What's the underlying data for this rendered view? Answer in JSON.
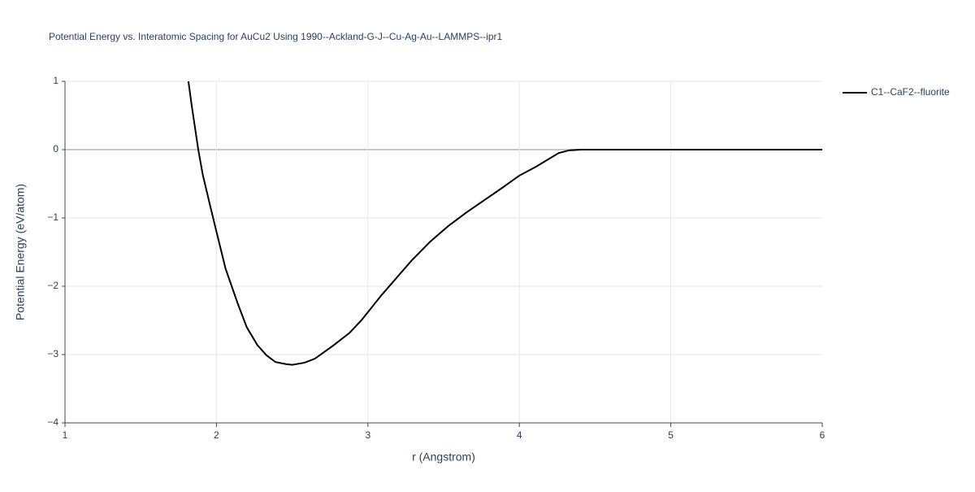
{
  "chart_data": {
    "type": "line",
    "title": "Potential Energy vs. Interatomic Spacing for AuCu2 Using 1990--Ackland-G-J--Cu-Ag-Au--LAMMPS--ipr1",
    "x_label": "r (Angstrom)",
    "y_label": "Potential Energy (eV/atom)",
    "x": [
      1.815,
      1.837,
      1.88,
      1.91,
      1.955,
      2.0,
      2.06,
      2.14,
      2.2,
      2.27,
      2.33,
      2.39,
      2.46,
      2.5,
      2.58,
      2.65,
      2.77,
      2.88,
      2.96,
      3.09,
      3.29,
      3.41,
      3.53,
      3.65,
      3.88,
      4.0,
      4.11,
      4.26,
      4.33,
      4.41,
      6.0
    ],
    "series": [
      {
        "name": "C1--CaF2--fluorite",
        "color": "#000000",
        "values": [
          1,
          0.64,
          0.0,
          -0.37,
          -0.79,
          -1.2,
          -1.74,
          -2.25,
          -2.6,
          -2.86,
          -3.01,
          -3.11,
          -3.14,
          -3.15,
          -3.12,
          -3.06,
          -2.87,
          -2.68,
          -2.49,
          -2.13,
          -1.62,
          -1.35,
          -1.12,
          -0.92,
          -0.57,
          -0.38,
          -0.25,
          -0.05,
          -0.01,
          0,
          0
        ]
      }
    ],
    "xlim": [
      1,
      6
    ],
    "xticks": [
      1,
      2,
      3,
      4,
      5,
      6
    ],
    "ylim": [
      -4,
      1
    ],
    "yticks": [
      {
        "value": -4,
        "label": "−4"
      },
      {
        "value": -3,
        "label": "−3"
      },
      {
        "value": -2,
        "label": "−2"
      },
      {
        "value": -1,
        "label": "−1"
      },
      0,
      1
    ],
    "grid": true,
    "legend": "right"
  }
}
